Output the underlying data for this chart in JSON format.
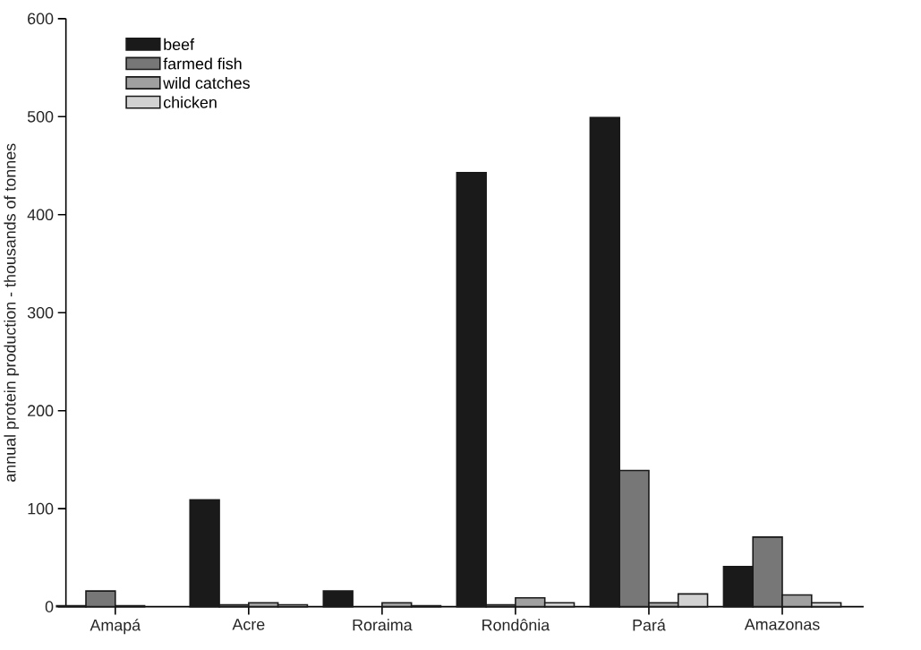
{
  "chart_data": {
    "type": "bar",
    "ylabel": "annual protein production - thousands of tonnes",
    "categories": [
      "Amapá",
      "Acre",
      "Roraima",
      "Rondônia",
      "Pará",
      "Amazonas"
    ],
    "series": [
      {
        "name": "beef",
        "color": "#1a1a1a",
        "values": [
          1,
          109,
          16,
          443,
          499,
          41
        ]
      },
      {
        "name": "farmed fish",
        "color": "#777777",
        "values": [
          16,
          2,
          null,
          2,
          139,
          71
        ]
      },
      {
        "name": "wild catches",
        "color": "#a0a0a0",
        "values": [
          1,
          4,
          4,
          9,
          4,
          12
        ]
      },
      {
        "name": "chicken",
        "color": "#d2d2d2",
        "values": [
          null,
          2,
          1,
          4,
          13,
          4
        ]
      }
    ],
    "ylim": [
      0,
      600
    ],
    "yticks": [
      0,
      100,
      200,
      300,
      400,
      500,
      600
    ],
    "grid": false,
    "legend": "top left"
  }
}
